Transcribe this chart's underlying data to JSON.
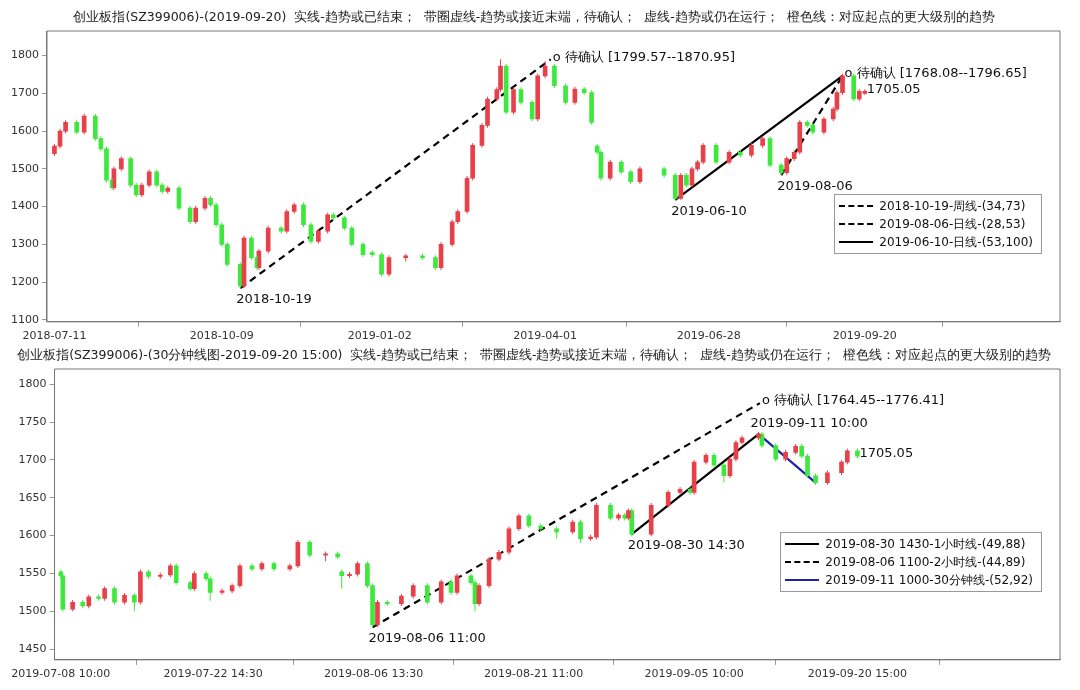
{
  "chart_data": [
    {
      "type": "candlestick",
      "title": "创业板指(SZ399006)-(2019-09-20)  实线-趋势或已结束；  带圈虚线-趋势或接近末端，待确认；  虚线-趋势或仍在运行；  橙色线：对应起点的更大级别的趋势",
      "xlim": [
        "2018-07-07",
        "2020-01-03"
      ],
      "xticks": [
        "2018-07-11",
        "2018-10-09",
        "2019-01-02",
        "2019-04-01",
        "2019-06-28",
        "2019-09-20"
      ],
      "ylim": [
        1095,
        1865
      ],
      "yticks": [
        1100,
        1200,
        1300,
        1400,
        1500,
        1600,
        1700,
        1800
      ],
      "legend": "bottom right",
      "series": [
        {
          "color": "#e8414a",
          "x": [
            "2018-07-11",
            "2018-07-14",
            "2018-07-17",
            "2018-07-27",
            "2018-08-12",
            "2018-08-16",
            "2018-08-27",
            "2018-08-31",
            "2018-09-10",
            "2018-09-25",
            "2018-09-30",
            "2018-10-21",
            "2018-10-29",
            "2018-11-03",
            "2018-11-13",
            "2018-11-17",
            "2018-11-30",
            "2018-12-05",
            "2019-01-07",
            "2019-01-16",
            "2019-02-04",
            "2019-02-10",
            "2019-02-13",
            "2019-02-18",
            "2019-02-21",
            "2019-02-26",
            "2019-03-01",
            "2019-03-06",
            "2019-03-08",
            "2019-03-15",
            "2019-03-28",
            "2019-04-01",
            "2019-04-17",
            "2019-05-06",
            "2019-05-22",
            "2019-06-13",
            "2019-06-19",
            "2019-06-22",
            "2019-06-25",
            "2019-07-09",
            "2019-07-21",
            "2019-07-27",
            "2019-08-09",
            "2019-08-13",
            "2019-08-16",
            "2019-08-29",
            "2019-09-03",
            "2019-09-05",
            "2019-09-08",
            "2019-09-17",
            "2019-09-20"
          ],
          "ohlc": [
            [
              1540,
              1566,
              1534,
              1560
            ],
            [
              1560,
              1606,
              1554,
              1600
            ],
            [
              1600,
              1629,
              1594,
              1623
            ],
            [
              1597,
              1646,
              1591,
              1640
            ],
            [
              1450,
              1506,
              1444,
              1500
            ],
            [
              1500,
              1533,
              1494,
              1527
            ],
            [
              1431,
              1463,
              1425,
              1457
            ],
            [
              1457,
              1498,
              1451,
              1492
            ],
            [
              1440,
              1455,
              1434,
              1449
            ],
            [
              1360,
              1402,
              1354,
              1396
            ],
            [
              1396,
              1428,
              1390,
              1422
            ],
            [
              1190,
              1323,
              1184,
              1317
            ],
            [
              1238,
              1288,
              1232,
              1282
            ],
            [
              1282,
              1349,
              1276,
              1343
            ],
            [
              1335,
              1393,
              1329,
              1387
            ],
            [
              1387,
              1411,
              1381,
              1405
            ],
            [
              1308,
              1341,
              1302,
              1335
            ],
            [
              1335,
              1384,
              1329,
              1378
            ],
            [
              1221,
              1271,
              1215,
              1265
            ],
            [
              1265,
              1275,
              1255,
              1270
            ],
            [
              1238,
              1306,
              1232,
              1300
            ],
            [
              1300,
              1366,
              1294,
              1360
            ],
            [
              1360,
              1393,
              1354,
              1387
            ],
            [
              1387,
              1481,
              1381,
              1475
            ],
            [
              1475,
              1568,
              1469,
              1562
            ],
            [
              1562,
              1621,
              1556,
              1615
            ],
            [
              1615,
              1691,
              1609,
              1685
            ],
            [
              1685,
              1716,
              1679,
              1710
            ],
            [
              1710,
              1790,
              1704,
              1772
            ],
            [
              1650,
              1716,
              1644,
              1710
            ],
            [
              1632,
              1752,
              1626,
              1746
            ],
            [
              1746,
              1785,
              1740,
              1772
            ],
            [
              1676,
              1717,
              1670,
              1711
            ],
            [
              1475,
              1524,
              1469,
              1518
            ],
            [
              1466,
              1506,
              1460,
              1500
            ],
            [
              1422,
              1489,
              1418,
              1483
            ],
            [
              1457,
              1506,
              1451,
              1500
            ],
            [
              1500,
              1524,
              1494,
              1518
            ],
            [
              1518,
              1568,
              1512,
              1562
            ],
            [
              1518,
              1550,
              1512,
              1544
            ],
            [
              1536,
              1568,
              1530,
              1562
            ],
            [
              1562,
              1586,
              1556,
              1580
            ],
            [
              1490,
              1533,
              1484,
              1527
            ],
            [
              1527,
              1550,
              1521,
              1544
            ],
            [
              1544,
              1629,
              1538,
              1623
            ],
            [
              1597,
              1638,
              1591,
              1632
            ],
            [
              1632,
              1664,
              1626,
              1658
            ],
            [
              1658,
              1708,
              1652,
              1702
            ],
            [
              1702,
              1752,
              1696,
              1746
            ],
            [
              1685,
              1711,
              1679,
              1705
            ],
            [
              1700,
              1711,
              1696,
              1705.05
            ]
          ]
        },
        {
          "color": "#3ee83e",
          "x": [
            "2018-07-23",
            "2018-08-02",
            "2018-08-05",
            "2018-08-08",
            "2018-08-11",
            "2018-08-21",
            "2018-08-24",
            "2018-09-04",
            "2018-09-07",
            "2018-09-16",
            "2018-09-22",
            "2018-10-03",
            "2018-10-06",
            "2018-10-09",
            "2018-10-12",
            "2018-10-19",
            "2018-10-25",
            "2018-10-28",
            "2018-11-10",
            "2018-11-22",
            "2018-11-26",
            "2018-12-08",
            "2018-12-14",
            "2018-12-18",
            "2018-12-24",
            "2018-12-29",
            "2019-01-03",
            "2019-01-25",
            "2019-02-01",
            "2019-03-11",
            "2019-03-19",
            "2019-03-25",
            "2019-04-06",
            "2019-04-12",
            "2019-04-22",
            "2019-04-26",
            "2019-04-29",
            "2019-05-01",
            "2019-05-12",
            "2019-05-17",
            "2019-06-04",
            "2019-06-10",
            "2019-06-16",
            "2019-07-02",
            "2019-07-15",
            "2019-07-31",
            "2019-08-06",
            "2019-08-20",
            "2019-08-23",
            "2019-09-14"
          ],
          "ohlc": [
            [
              1623,
              1629,
              1591,
              1597
            ],
            [
              1640,
              1646,
              1574,
              1580
            ],
            [
              1580,
              1586,
              1547,
              1553
            ],
            [
              1553,
              1559,
              1464,
              1470
            ],
            [
              1470,
              1476,
              1444,
              1450
            ],
            [
              1527,
              1533,
              1451,
              1457
            ],
            [
              1457,
              1463,
              1425,
              1431
            ],
            [
              1492,
              1498,
              1451,
              1457
            ],
            [
              1457,
              1463,
              1434,
              1440
            ],
            [
              1449,
              1455,
              1390,
              1396
            ],
            [
              1396,
              1402,
              1354,
              1360
            ],
            [
              1422,
              1428,
              1399,
              1405
            ],
            [
              1405,
              1411,
              1346,
              1352
            ],
            [
              1352,
              1358,
              1294,
              1300
            ],
            [
              1300,
              1306,
              1241,
              1247
            ],
            [
              1247,
              1253,
              1184,
              1190
            ],
            [
              1317,
              1323,
              1259,
              1265
            ],
            [
              1265,
              1271,
              1232,
              1238
            ],
            [
              1343,
              1349,
              1329,
              1335
            ],
            [
              1405,
              1411,
              1346,
              1352
            ],
            [
              1352,
              1358,
              1302,
              1308
            ],
            [
              1378,
              1384,
              1364,
              1370
            ],
            [
              1370,
              1376,
              1337,
              1343
            ],
            [
              1343,
              1349,
              1294,
              1300
            ],
            [
              1300,
              1306,
              1267,
              1273
            ],
            [
              1278,
              1284,
              1267,
              1273
            ],
            [
              1273,
              1279,
              1215,
              1221
            ],
            [
              1270,
              1276,
              1259,
              1265
            ],
            [
              1265,
              1271,
              1232,
              1238
            ],
            [
              1772,
              1778,
              1644,
              1650
            ],
            [
              1710,
              1716,
              1670,
              1676
            ],
            [
              1676,
              1682,
              1626,
              1632
            ],
            [
              1772,
              1778,
              1714,
              1720
            ],
            [
              1720,
              1726,
              1670,
              1676
            ],
            [
              1711,
              1717,
              1696,
              1702
            ],
            [
              1702,
              1708,
              1617,
              1623
            ],
            [
              1560,
              1566,
              1538,
              1544
            ],
            [
              1544,
              1550,
              1469,
              1475
            ],
            [
              1518,
              1524,
              1486,
              1492
            ],
            [
              1492,
              1498,
              1460,
              1466
            ],
            [
              1500,
              1506,
              1477,
              1483
            ],
            [
              1483,
              1489,
              1418,
              1422
            ],
            [
              1483,
              1489,
              1451,
              1457
            ],
            [
              1562,
              1568,
              1512,
              1518
            ],
            [
              1544,
              1550,
              1530,
              1536
            ],
            [
              1580,
              1586,
              1504,
              1510
            ],
            [
              1510,
              1516,
              1483,
              1490
            ],
            [
              1623,
              1629,
              1609,
              1615
            ],
            [
              1615,
              1621,
              1591,
              1597
            ],
            [
              1746,
              1752,
              1679,
              1685
            ]
          ]
        },
        {
          "type": "line",
          "name": "2018-10-19-周线-(34,73)",
          "color": "#000000",
          "line_style": "dashed",
          "x": [
            "2018-10-19",
            "2019-04-04"
          ],
          "values": [
            1184,
            1790
          ]
        },
        {
          "type": "line",
          "name": "2019-08-06-日线-(28,53)",
          "color": "#000000",
          "line_style": "dashed",
          "x": [
            "2019-08-06",
            "2019-09-08"
          ],
          "values": [
            1483,
            1746
          ]
        },
        {
          "type": "line",
          "name": "2019-06-10-日线-(53,100)",
          "color": "#000000",
          "line_style": "solid",
          "x": [
            "2019-06-10",
            "2019-09-08"
          ],
          "values": [
            1418,
            1746
          ]
        }
      ],
      "annotations": [
        {
          "text": "o 待确认 [1799.57--1870.95]",
          "x": "2019-04-04",
          "y": 1790
        },
        {
          "text": "o 待确认 [1768.08--1796.65]",
          "x": "2019-09-08",
          "y": 1746
        },
        {
          "text": "1705.05",
          "x": "2019-09-20",
          "y": 1705.05
        },
        {
          "text": "2018-10-19",
          "x": "2018-10-19",
          "y": 1184
        },
        {
          "text": "2019-06-10",
          "x": "2019-06-10",
          "y": 1418
        },
        {
          "text": "2019-08-06",
          "x": "2019-08-06",
          "y": 1483
        }
      ]
    },
    {
      "type": "candlestick",
      "title": "创业板指(SZ399006)-(30分钟线图-2019-09-20 15:00)  实线-趋势或已结束；  带圈虚线-趋势或接近末端，待确认；  虚线-趋势或仍在运行；  橙色线：对应起点的更大级别的趋势",
      "xlim": [
        "2019-07-07T20:00",
        "2019-10-09T12:00"
      ],
      "xticks": [
        {
          "value": "2019-07-08T10:00",
          "label": "2019-07-08 10:00"
        },
        {
          "value": "2019-07-22T14:30",
          "label": "2019-07-22 14:30"
        },
        {
          "value": "2019-08-06T13:30",
          "label": "2019-08-06 13:30"
        },
        {
          "value": "2019-08-21T11:00",
          "label": "2019-08-21 11:00"
        },
        {
          "value": "2019-09-05T10:00",
          "label": "2019-09-05 10:00"
        },
        {
          "value": "2019-09-20T15:00",
          "label": "2019-09-20 15:00"
        }
      ],
      "ylim": [
        1436,
        1820
      ],
      "yticks": [
        1450,
        1500,
        1550,
        1600,
        1650,
        1700,
        1750,
        1800
      ],
      "legend": "bottom right",
      "series": [
        {
          "color": "#e8414a",
          "x": [
            "2019-07-09T12:30",
            "2019-07-11T00:30",
            "2019-07-12T12:00",
            "2019-07-14T08:30",
            "2019-07-15T20:00",
            "2019-07-17T16:30",
            "2019-07-18T15:00",
            "2019-07-20T20:30",
            "2019-07-23T10:30",
            "2019-07-24T09:00",
            "2019-07-25T02:30",
            "2019-07-27T03:30",
            "2019-07-29T18:00",
            "2019-07-30T12:00",
            "2019-08-02T02:00",
            "2019-08-04T07:30",
            "2019-08-05T01:30",
            "2019-08-06T22:00",
            "2019-08-09T03:30",
            "2019-08-10T06:00",
            "2019-08-12T20:30",
            "2019-08-14T08:00",
            "2019-08-16T09:00",
            "2019-08-17T07:30",
            "2019-08-18T05:30",
            "2019-08-19T04:00",
            "2019-08-20T02:00",
            "2019-08-25T02:30",
            "2019-08-26T18:30",
            "2019-08-27T07:30",
            "2019-08-29T09:00",
            "2019-08-30T07:00",
            "2019-09-01T10:00",
            "2019-09-03T00:00",
            "2019-09-04T02:30",
            "2019-09-05T10:00",
            "2019-09-06T12:30",
            "2019-09-08T18:00",
            "2019-09-09T07:30",
            "2019-09-09T21:00",
            "2019-09-11T10:00",
            "2019-09-13T22:30",
            "2019-09-14T21:00",
            "2019-09-17T20:00",
            "2019-09-19T03:30",
            "2019-09-19T16:30"
          ],
          "ohlc": [
            [
              1503,
              1515,
              1500,
              1512
            ],
            [
              1507,
              1522,
              1504,
              1519
            ],
            [
              1517,
              1533,
              1514,
              1530
            ],
            [
              1512,
              1524,
              1509,
              1521
            ],
            [
              1512,
              1555,
              1509,
              1552
            ],
            [
              1546,
              1551,
              1543,
              1548
            ],
            [
              1548,
              1563,
              1545,
              1560
            ],
            [
              1530,
              1553,
              1527,
              1550
            ],
            [
              1525,
              1530,
              1522,
              1527
            ],
            [
              1527,
              1537,
              1524,
              1534
            ],
            [
              1534,
              1563,
              1531,
              1560
            ],
            [
              1556,
              1566,
              1553,
              1563
            ],
            [
              1556,
              1563,
              1553,
              1560
            ],
            [
              1560,
              1594,
              1557,
              1591
            ],
            [
              1574,
              1579,
              1566,
              1576
            ],
            [
              1547,
              1552,
              1544,
              1549
            ],
            [
              1549,
              1566,
              1546,
              1563
            ],
            [
              1482,
              1515,
              1479,
              1512
            ],
            [
              1510,
              1523,
              1507,
              1520
            ],
            [
              1520,
              1537,
              1517,
              1534
            ],
            [
              1512,
              1542,
              1509,
              1539
            ],
            [
              1525,
              1550,
              1522,
              1547
            ],
            [
              1510,
              1537,
              1507,
              1534
            ],
            [
              1534,
              1572,
              1531,
              1569
            ],
            [
              1569,
              1581,
              1566,
              1578
            ],
            [
              1578,
              1612,
              1575,
              1609
            ],
            [
              1609,
              1629,
              1606,
              1626
            ],
            [
              1605,
              1621,
              1602,
              1618
            ],
            [
              1596,
              1601,
              1593,
              1598
            ],
            [
              1598,
              1643,
              1595,
              1640
            ],
            [
              1623,
              1630,
              1620,
              1627
            ],
            [
              1623,
              1636,
              1620,
              1633
            ],
            [
              1602,
              1643,
              1599,
              1640
            ],
            [
              1640,
              1660,
              1637,
              1657
            ],
            [
              1657,
              1664,
              1654,
              1661
            ],
            [
              1657,
              1700,
              1654,
              1697
            ],
            [
              1697,
              1709,
              1694,
              1706
            ],
            [
              1679,
              1704,
              1676,
              1701
            ],
            [
              1701,
              1726,
              1698,
              1723
            ],
            [
              1723,
              1732,
              1720,
              1729
            ],
            [
              1729,
              1737,
              1726,
              1734
            ],
            [
              1701,
              1713,
              1698,
              1710
            ],
            [
              1710,
              1721,
              1707,
              1718
            ],
            [
              1670,
              1686,
              1667,
              1683
            ],
            [
              1683,
              1700,
              1680,
              1697
            ],
            [
              1697,
              1715,
              1694,
              1712
            ]
          ]
        },
        {
          "color": "#3ee83e",
          "x": [
            "2019-07-08T10:00",
            "2019-07-08T14:30",
            "2019-07-10T11:00",
            "2019-07-11T22:30",
            "2019-07-13T10:00",
            "2019-07-15T06:30",
            "2019-07-16T14:00",
            "2019-07-19T04:00",
            "2019-07-20T11:30",
            "2019-07-21T23:00",
            "2019-07-22T08:00",
            "2019-07-26T05:30",
            "2019-07-28T06:30",
            "2019-07-31T14:30",
            "2019-08-03T05:00",
            "2019-08-03T14:00",
            "2019-08-05T23:30",
            "2019-08-06T11:00",
            "2019-08-07T20:00",
            "2019-08-11T13:30",
            "2019-08-13T18:30",
            "2019-08-15T15:00",
            "2019-08-16T00:00",
            "2019-08-21T00:30",
            "2019-08-22T03:00",
            "2019-08-23T14:30",
            "2019-08-25T20:00",
            "2019-08-28T15:00",
            "2019-08-29T23:00",
            "2019-08-30T14:30",
            "2019-09-05T01:00",
            "2019-09-07T06:30",
            "2019-09-08T04:30",
            "2019-09-11T17:30",
            "2019-09-13T00:30",
            "2019-09-15T10:30",
            "2019-09-15T23:30",
            "2019-09-16T17:30",
            "2019-09-20T15:00"
          ],
          "ohlc": [
            [
              1552,
              1555,
              1544,
              1547
            ],
            [
              1547,
              1550,
              1500,
              1503
            ],
            [
              1512,
              1515,
              1504,
              1507
            ],
            [
              1519,
              1522,
              1514,
              1517
            ],
            [
              1530,
              1533,
              1509,
              1512
            ],
            [
              1521,
              1524,
              1500,
              1512
            ],
            [
              1552,
              1555,
              1543,
              1546
            ],
            [
              1560,
              1563,
              1535,
              1538
            ],
            [
              1538,
              1541,
              1527,
              1530
            ],
            [
              1550,
              1553,
              1540,
              1543
            ],
            [
              1543,
              1546,
              1514,
              1525
            ],
            [
              1560,
              1563,
              1553,
              1556
            ],
            [
              1563,
              1566,
              1553,
              1556
            ],
            [
              1591,
              1594,
              1571,
              1574
            ],
            [
              1576,
              1579,
              1569,
              1572
            ],
            [
              1552,
              1555,
              1530,
              1547
            ],
            [
              1563,
              1566,
              1531,
              1534
            ],
            [
              1534,
              1537,
              1479,
              1482
            ],
            [
              1512,
              1515,
              1507,
              1510
            ],
            [
              1534,
              1537,
              1509,
              1512
            ],
            [
              1539,
              1542,
              1522,
              1525
            ],
            [
              1547,
              1550,
              1535,
              1538
            ],
            [
              1538,
              1541,
              1500,
              1510
            ],
            [
              1626,
              1629,
              1610,
              1613
            ],
            [
              1613,
              1616,
              1606,
              1609
            ],
            [
              1609,
              1612,
              1596,
              1605
            ],
            [
              1618,
              1621,
              1590,
              1596
            ],
            [
              1640,
              1643,
              1620,
              1623
            ],
            [
              1627,
              1630,
              1620,
              1623
            ],
            [
              1633,
              1636,
              1599,
              1602
            ],
            [
              1661,
              1664,
              1654,
              1657
            ],
            [
              1706,
              1709,
              1690,
              1693
            ],
            [
              1693,
              1696,
              1670,
              1679
            ],
            [
              1734,
              1737,
              1716,
              1719
            ],
            [
              1719,
              1722,
              1698,
              1701
            ],
            [
              1718,
              1721,
              1702,
              1705
            ],
            [
              1705,
              1708,
              1676,
              1679
            ],
            [
              1679,
              1682,
              1667,
              1670
            ],
            [
              1712,
              1715,
              1702,
              1705.05
            ]
          ]
        },
        {
          "type": "line",
          "name": "2019-08-30 1430-1小时线-(49,88)",
          "color": "#000000",
          "line_style": "solid",
          "x": [
            "2019-08-30T14:30",
            "2019-09-11T10:00"
          ],
          "values": [
            1602,
            1734
          ]
        },
        {
          "type": "line",
          "name": "2019-08-06 1100-2小时线-(44,89)",
          "color": "#000000",
          "line_style": "dashed",
          "x": [
            "2019-08-06T11:00",
            "2019-09-11T13:00"
          ],
          "values": [
            1479,
            1775
          ]
        },
        {
          "type": "line",
          "name": "2019-09-11 1000-30分钟线-(52,92)",
          "color": "#2020b0",
          "line_style": "solid",
          "x": [
            "2019-09-11T10:00",
            "2019-09-16T17:30"
          ],
          "values": [
            1734,
            1670
          ]
        }
      ],
      "annotations": [
        {
          "text": "o 待确认 [1764.45--1776.41]",
          "x": "2019-09-11T13:00",
          "y": 1775
        },
        {
          "text": "2019-09-11 10:00",
          "x": "2019-09-11T10:00",
          "y": 1734
        },
        {
          "text": "1705.05",
          "x": "2019-09-20T15:00",
          "y": 1705.05
        },
        {
          "text": "2019-08-06 11:00",
          "x": "2019-08-06T11:00",
          "y": 1479
        },
        {
          "text": "2019-08-30 14:30",
          "x": "2019-08-30T14:30",
          "y": 1602
        }
      ]
    }
  ]
}
